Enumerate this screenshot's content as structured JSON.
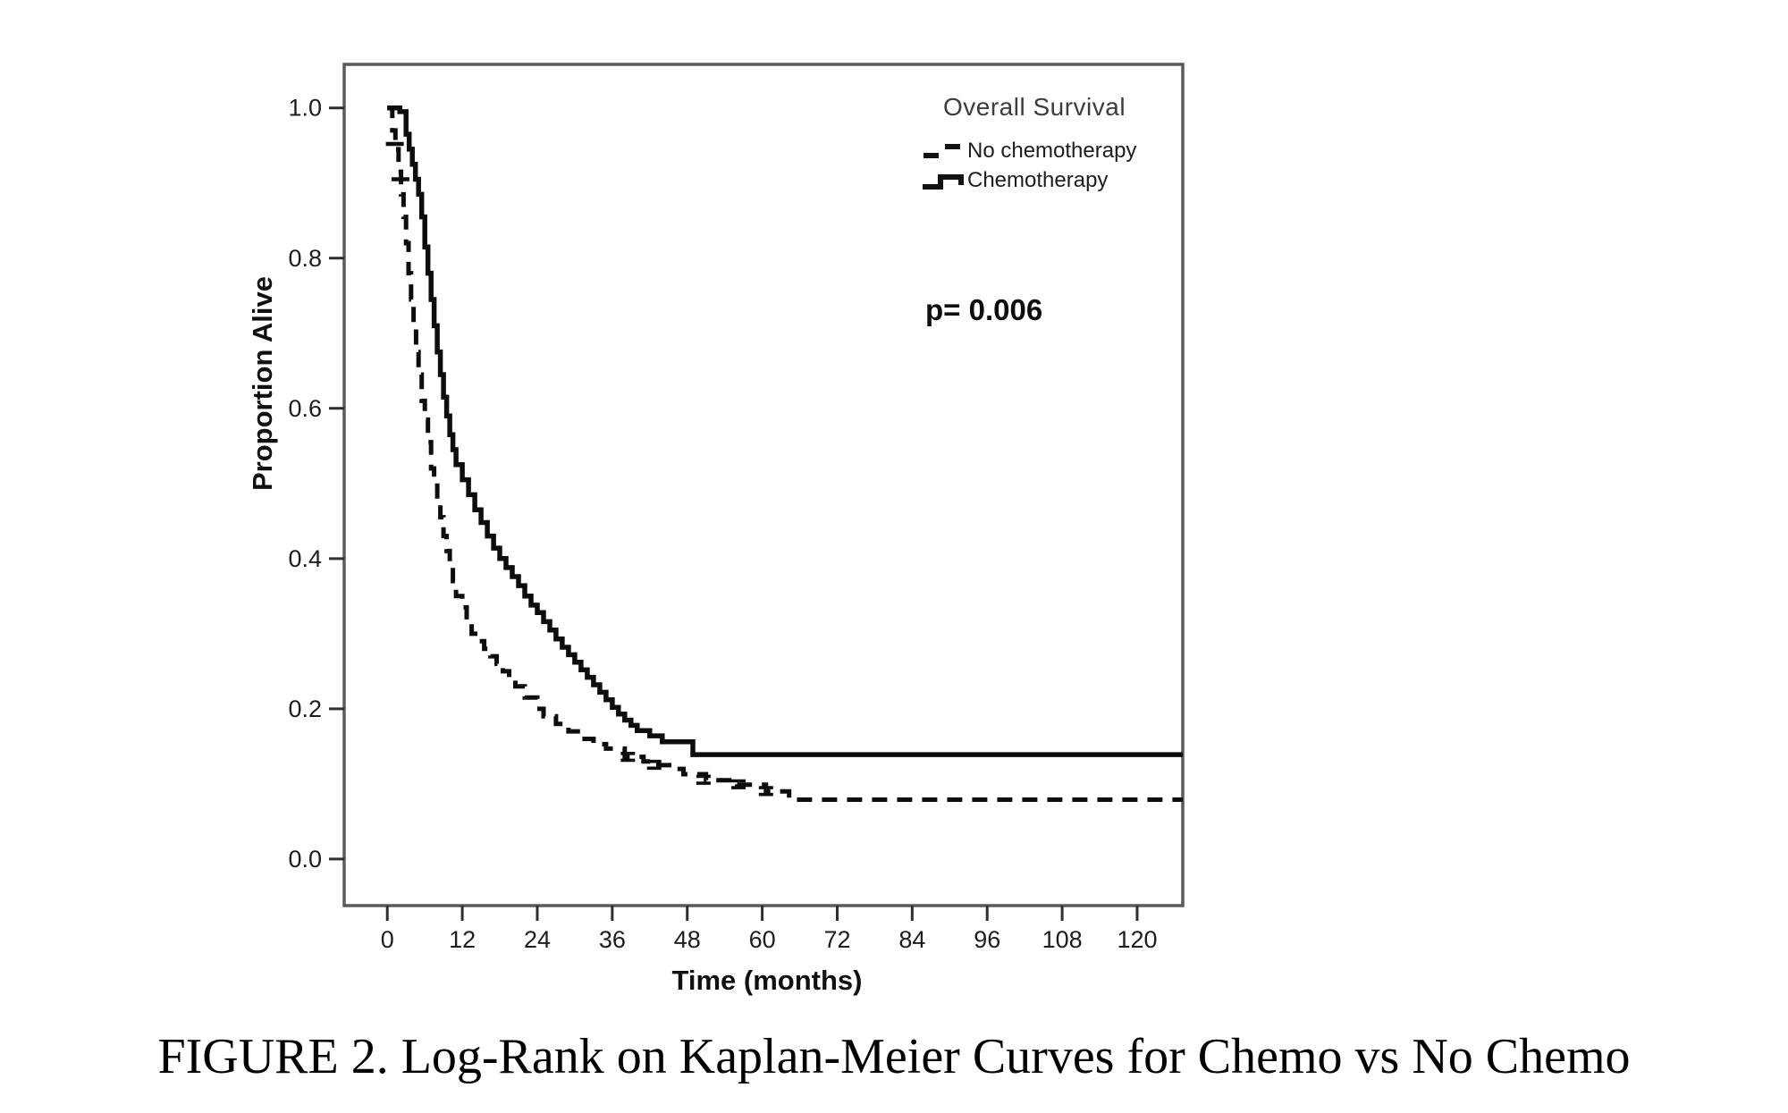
{
  "page": {
    "caption": "FIGURE 2. Log-Rank on Kaplan-Meier Curves for Chemo vs No Chemo"
  },
  "chart_data": {
    "type": "line",
    "subtype": "kaplan-meier-step-curves",
    "legend_title": "Overall Survival",
    "annotation": "p= 0.006",
    "xlabel": "Time (months)",
    "ylabel": "Proportion Alive",
    "xticks": [
      0,
      12,
      24,
      36,
      48,
      60,
      72,
      84,
      96,
      108,
      120
    ],
    "yticks": [
      "0.0",
      "0.2",
      "0.4",
      "0.6",
      "0.8",
      "1.0"
    ],
    "xlim": [
      -6.9,
      127.3
    ],
    "ylim": [
      -0.062,
      1.058
    ],
    "grid": false,
    "legend_position": "top-right-inside",
    "line_color": "#0d0d0d",
    "series": [
      {
        "name": "No chemotherapy",
        "line_style": "dashed",
        "plateau": 0.079,
        "steps": [
          [
            0,
            1.0
          ],
          [
            0.8,
            0.97
          ],
          [
            1.3,
            0.945
          ],
          [
            1.8,
            0.915
          ],
          [
            2.2,
            0.885
          ],
          [
            2.6,
            0.855
          ],
          [
            3,
            0.82
          ],
          [
            3.4,
            0.78
          ],
          [
            3.8,
            0.745
          ],
          [
            4.2,
            0.71
          ],
          [
            4.6,
            0.675
          ],
          [
            5,
            0.645
          ],
          [
            5.5,
            0.61
          ],
          [
            6,
            0.585
          ],
          [
            6.5,
            0.555
          ],
          [
            7,
            0.52
          ],
          [
            7.5,
            0.5
          ],
          [
            8,
            0.475
          ],
          [
            8.5,
            0.455
          ],
          [
            9,
            0.43
          ],
          [
            9.5,
            0.41
          ],
          [
            10,
            0.39
          ],
          [
            10.5,
            0.37
          ],
          [
            11,
            0.35
          ],
          [
            12,
            0.335
          ],
          [
            12.7,
            0.317
          ],
          [
            13.5,
            0.3
          ],
          [
            14.5,
            0.29
          ],
          [
            15.5,
            0.28
          ],
          [
            16.5,
            0.27
          ],
          [
            17.5,
            0.26
          ],
          [
            18.5,
            0.25
          ],
          [
            19.5,
            0.24
          ],
          [
            20.5,
            0.23
          ],
          [
            22,
            0.215
          ],
          [
            24,
            0.2
          ],
          [
            25,
            0.19
          ],
          [
            27,
            0.18
          ],
          [
            29,
            0.17
          ],
          [
            31,
            0.16
          ],
          [
            33,
            0.153
          ],
          [
            35,
            0.147
          ],
          [
            38,
            0.136
          ],
          [
            41,
            0.13
          ],
          [
            43,
            0.125
          ],
          [
            46,
            0.12
          ],
          [
            47.4,
            0.113
          ],
          [
            51,
            0.105
          ],
          [
            56,
            0.099
          ],
          [
            60.6,
            0.09
          ],
          [
            64.3,
            0.079
          ],
          [
            127.3,
            0.079
          ]
        ],
        "censors": [
          {
            "t": 1.2,
            "s": 0.952,
            "style": "cross"
          },
          {
            "t": 2.1,
            "s": 0.905,
            "style": "cross"
          },
          {
            "t": 38.5,
            "s": 0.136,
            "style": "double-dash"
          },
          {
            "t": 42.7,
            "s": 0.1255,
            "style": "double-dash"
          },
          {
            "t": 50.6,
            "s": 0.1055,
            "style": "double-dash"
          },
          {
            "t": 56.2,
            "s": 0.0995,
            "style": "double-dash"
          },
          {
            "t": 60.6,
            "s": 0.0905,
            "style": "double-dash"
          }
        ]
      },
      {
        "name": "Chemotherapy",
        "line_style": "solid",
        "plateau": 0.139,
        "steps": [
          [
            0,
            1.0
          ],
          [
            2,
            0.995
          ],
          [
            3,
            0.965
          ],
          [
            3.5,
            0.945
          ],
          [
            4,
            0.925
          ],
          [
            4.5,
            0.905
          ],
          [
            5,
            0.885
          ],
          [
            5.5,
            0.855
          ],
          [
            6,
            0.815
          ],
          [
            6.5,
            0.78
          ],
          [
            7,
            0.745
          ],
          [
            7.5,
            0.71
          ],
          [
            8,
            0.675
          ],
          [
            8.5,
            0.645
          ],
          [
            9,
            0.615
          ],
          [
            9.5,
            0.59
          ],
          [
            10,
            0.565
          ],
          [
            10.5,
            0.545
          ],
          [
            11,
            0.525
          ],
          [
            12,
            0.505
          ],
          [
            13,
            0.485
          ],
          [
            14,
            0.465
          ],
          [
            15,
            0.448
          ],
          [
            16,
            0.43
          ],
          [
            17,
            0.414
          ],
          [
            18,
            0.4
          ],
          [
            19,
            0.388
          ],
          [
            20,
            0.376
          ],
          [
            21,
            0.364
          ],
          [
            22,
            0.35
          ],
          [
            23,
            0.338
          ],
          [
            24,
            0.328
          ],
          [
            25,
            0.316
          ],
          [
            26,
            0.305
          ],
          [
            27,
            0.293
          ],
          [
            28,
            0.282
          ],
          [
            29,
            0.272
          ],
          [
            30,
            0.262
          ],
          [
            31,
            0.252
          ],
          [
            32,
            0.242
          ],
          [
            33,
            0.232
          ],
          [
            34,
            0.222
          ],
          [
            35,
            0.212
          ],
          [
            36,
            0.202
          ],
          [
            37,
            0.193
          ],
          [
            38,
            0.185
          ],
          [
            39,
            0.178
          ],
          [
            40,
            0.171
          ],
          [
            42,
            0.164
          ],
          [
            44,
            0.156
          ],
          [
            48.9,
            0.139
          ],
          [
            127.3,
            0.139
          ]
        ],
        "censors": []
      }
    ]
  }
}
